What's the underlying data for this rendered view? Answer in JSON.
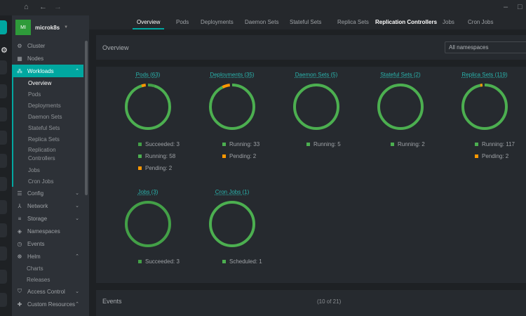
{
  "window": {
    "home_icon": "home-icon",
    "back_icon": "arrow-left-icon",
    "forward_icon": "arrow-right-icon",
    "minimize": "–",
    "maximize": "□"
  },
  "cluster": {
    "initials": "MI",
    "name": "microk8s"
  },
  "sidebar": {
    "items": [
      {
        "label": "Cluster",
        "icon": "⚙"
      },
      {
        "label": "Nodes",
        "icon": "▦"
      },
      {
        "label": "Workloads",
        "icon": "⁂"
      }
    ],
    "workloads": [
      "Overview",
      "Pods",
      "Deployments",
      "Daemon Sets",
      "Stateful Sets",
      "Replica Sets",
      "Replication Controllers",
      "Jobs",
      "Cron Jobs"
    ],
    "more": [
      {
        "label": "Config",
        "icon": "☰",
        "chev": "⌄"
      },
      {
        "label": "Network",
        "icon": "⅄",
        "chev": "⌄"
      },
      {
        "label": "Storage",
        "icon": "≡",
        "chev": "⌄"
      },
      {
        "label": "Namespaces",
        "icon": "◈"
      },
      {
        "label": "Events",
        "icon": "◷"
      },
      {
        "label": "Helm",
        "icon": "☸",
        "chev": "⌃"
      }
    ],
    "helm": [
      "Charts",
      "Releases"
    ],
    "last": [
      {
        "label": "Access Control",
        "icon": "⛉",
        "chev": "⌄"
      },
      {
        "label": "Custom Resources",
        "icon": "✚",
        "chev": "⌃"
      }
    ]
  },
  "tabs": [
    "Overview",
    "Pods",
    "Deployments",
    "Daemon Sets",
    "Stateful Sets",
    "Replica Sets",
    "Replication Controllers",
    "Jobs",
    "Cron Jobs"
  ],
  "overview": {
    "title": "Overview",
    "namespace_select": "All namespaces"
  },
  "colors": {
    "running": "#4caf50",
    "succeeded": "#43a047",
    "scheduled": "#4caf50",
    "pending": "#ff9800",
    "accent": "#00a7a0"
  },
  "workloads": [
    {
      "title": "Pods (63)",
      "stats": [
        {
          "label": "Succeeded: 3",
          "status": "succeeded",
          "value": 3
        },
        {
          "label": "Running: 58",
          "status": "running",
          "value": 58
        },
        {
          "label": "Pending: 2",
          "status": "pending",
          "value": 2
        }
      ]
    },
    {
      "title": "Deployments (35)",
      "stats": [
        {
          "label": "Running: 33",
          "status": "running",
          "value": 33
        },
        {
          "label": "Pending: 2",
          "status": "pending",
          "value": 2
        }
      ]
    },
    {
      "title": "Daemon Sets (5)",
      "stats": [
        {
          "label": "Running: 5",
          "status": "running",
          "value": 5
        }
      ]
    },
    {
      "title": "Stateful Sets (2)",
      "stats": [
        {
          "label": "Running: 2",
          "status": "running",
          "value": 2
        }
      ]
    },
    {
      "title": "Replica Sets (119)",
      "stats": [
        {
          "label": "Running: 117",
          "status": "running",
          "value": 117
        },
        {
          "label": "Pending: 2",
          "status": "pending",
          "value": 2
        }
      ]
    },
    {
      "title": "Jobs (3)",
      "stats": [
        {
          "label": "Succeeded: 3",
          "status": "succeeded",
          "value": 3
        }
      ]
    },
    {
      "title": "Cron Jobs (1)",
      "stats": [
        {
          "label": "Scheduled: 1",
          "status": "scheduled",
          "value": 1
        }
      ]
    }
  ],
  "events": {
    "title": "Events",
    "count": "(10 of 21)"
  }
}
